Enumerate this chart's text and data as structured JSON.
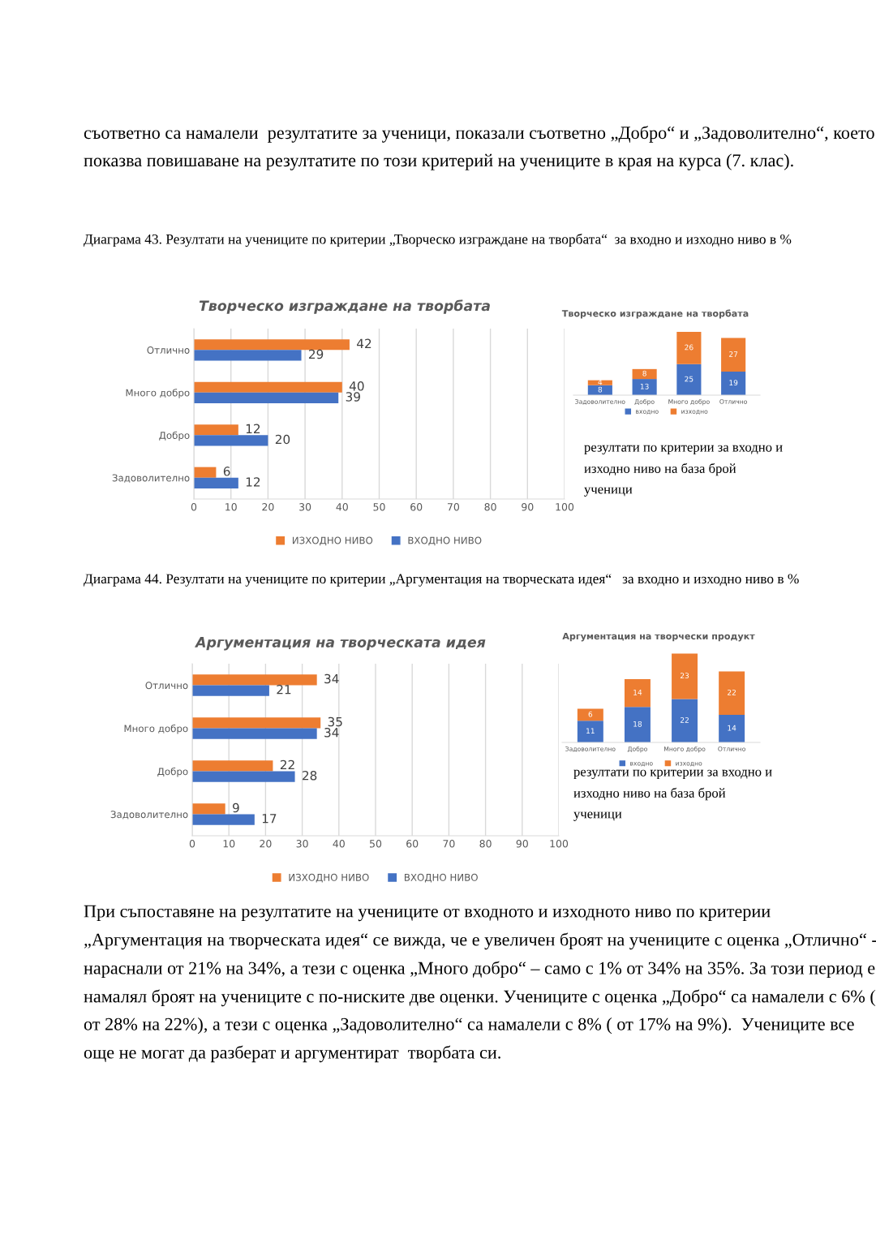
{
  "chart_data": [
    {
      "type": "bar",
      "orientation": "horizontal",
      "title": "Творческо изграждане на творбата",
      "categories": [
        "Отлично",
        "Много добро",
        "Добро",
        "Задоволително"
      ],
      "series": [
        {
          "name": "ИЗХОДНО НИВО",
          "color": "#ed7d31",
          "values": [
            42,
            40,
            12,
            6
          ]
        },
        {
          "name": "ВХОДНО НИВО",
          "color": "#4472c4",
          "values": [
            29,
            39,
            20,
            12
          ]
        }
      ],
      "xlim": [
        0,
        100
      ],
      "xticks": [
        0,
        10,
        20,
        30,
        40,
        50,
        60,
        70,
        80,
        90,
        100
      ],
      "grid": "x",
      "legend": "bottom",
      "data_labels": true,
      "annotations": [
        "съответно са намалели  резултатите за ученици, показали съответно „Добро“ и „Задоволително“, което показва повишаване на резултатите по този критерий на учениците в края на курса (7. клас).",
        "Диаграма 43. Резултати на учениците по критерии „Творческо изграждане на творбата“  за входно и изходно ниво в %"
      ]
    },
    {
      "type": "bar",
      "stacked": true,
      "title": "Творческо изграждане на творбата",
      "categories": [
        "Задоволително",
        "Добро",
        "Много добро",
        "Отлично"
      ],
      "series": [
        {
          "name": "входно",
          "color": "#4472c4",
          "values": [
            8,
            13,
            25,
            19
          ]
        },
        {
          "name": "изходно",
          "color": "#ed7d31",
          "values": [
            4,
            8,
            26,
            27
          ]
        }
      ],
      "tick_labels": "x",
      "legend": "bottom",
      "data_labels": true,
      "annotations": [
        "резултати по критерии за входно и изходно ниво на база брой ученици"
      ]
    },
    {
      "type": "bar",
      "orientation": "horizontal",
      "title": "Аргументация на творческата идея",
      "categories": [
        "Отлично",
        "Много добро",
        "Добро",
        "Задоволително"
      ],
      "series": [
        {
          "name": "ИЗХОДНО НИВО",
          "color": "#ed7d31",
          "values": [
            34,
            35,
            22,
            9
          ]
        },
        {
          "name": "ВХОДНО НИВО",
          "color": "#4472c4",
          "values": [
            21,
            34,
            28,
            17
          ]
        }
      ],
      "xlim": [
        0,
        100
      ],
      "xticks": [
        0,
        10,
        20,
        30,
        40,
        50,
        60,
        70,
        80,
        90,
        100
      ],
      "grid": "x",
      "legend": "bottom",
      "data_labels": true,
      "annotations": [
        "Диаграма 44. Резултати на учениците по критерии „Аргументация на творческата идея“   за входно и изходно ниво в %"
      ]
    },
    {
      "type": "bar",
      "stacked": true,
      "title": "Аргументация на творчески продукт",
      "categories": [
        "Задоволително",
        "Добро",
        "Много добро",
        "Отлично"
      ],
      "series": [
        {
          "name": "входно",
          "color": "#4472c4",
          "values": [
            11,
            18,
            22,
            14
          ]
        },
        {
          "name": "изходно",
          "color": "#ed7d31",
          "values": [
            6,
            14,
            23,
            22
          ]
        }
      ],
      "tick_labels": "x",
      "legend": "bottom",
      "data_labels": true,
      "annotations": [
        "резултати по критерии за входно и изходно ниво на база брой ученици",
        "При съпоставяне на резултатите на учениците от входното и изходното ниво по критерии „Аргументация на творческата идея“ се вижда, че е увеличен броят на учениците с оценка „Отлично“ - нараснали от 21% на 34%, а тези с оценка „Много добро“ – само с 1% от 34% на 35%. За този период е намалял броят на учениците с по-ниските две оценки. Учениците с оценка „Добро“ са намалели с 6% ( от 28% на 22%), а тези с оценка „Задоволително“ са намалели с 8% ( от 17% на 9%).  Учениците все още не могат да разберат и аргументират  творбата си."
      ]
    }
  ]
}
